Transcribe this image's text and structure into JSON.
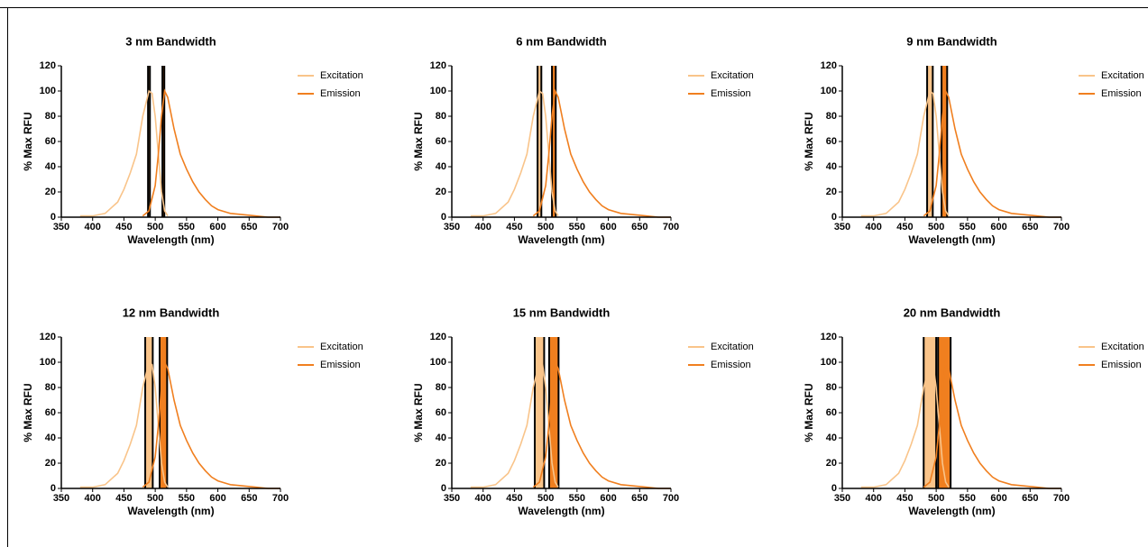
{
  "chart_data": [
    {
      "type": "line",
      "title": "3 nm Bandwidth",
      "x_label": "Wavelength (nm)",
      "y_label": "% Max RFU",
      "xlim": [
        350,
        700
      ],
      "ylim": [
        0,
        120
      ],
      "xticks": [
        350,
        400,
        450,
        500,
        550,
        600,
        650,
        700
      ],
      "yticks": [
        0,
        20,
        40,
        60,
        80,
        100,
        120
      ],
      "legend": "right",
      "bands": [
        {
          "color": "#f9c48a",
          "x": [
            488.5,
            491.5
          ]
        },
        {
          "color": "#f07f1f",
          "x": [
            511.5,
            514.5
          ]
        }
      ],
      "series": [
        {
          "name": "Excitation",
          "color": "#f9c48a",
          "x": [
            380,
            400,
            420,
            440,
            450,
            460,
            470,
            480,
            490,
            495,
            500,
            505,
            510,
            515,
            520
          ],
          "values": [
            1,
            1,
            3,
            12,
            22,
            35,
            50,
            80,
            100,
            98,
            80,
            50,
            20,
            5,
            1
          ]
        },
        {
          "name": "Emission",
          "color": "#f07f1f",
          "x": [
            480,
            490,
            500,
            505,
            510,
            515,
            520,
            530,
            540,
            550,
            560,
            570,
            580,
            590,
            600,
            620,
            640,
            660,
            680,
            700
          ],
          "values": [
            1,
            5,
            25,
            50,
            80,
            100,
            95,
            70,
            50,
            38,
            28,
            20,
            14,
            9,
            6,
            3,
            2,
            1,
            0,
            0
          ]
        }
      ]
    },
    {
      "type": "line",
      "title": "6 nm Bandwidth",
      "x_label": "Wavelength (nm)",
      "y_label": "% Max RFU",
      "xlim": [
        350,
        700
      ],
      "ylim": [
        0,
        120
      ],
      "xticks": [
        350,
        400,
        450,
        500,
        550,
        600,
        650,
        700
      ],
      "yticks": [
        0,
        20,
        40,
        60,
        80,
        100,
        120
      ],
      "legend": "right",
      "bands": [
        {
          "color": "#f9c48a",
          "x": [
            487,
            493
          ]
        },
        {
          "color": "#f07f1f",
          "x": [
            510,
            516
          ]
        }
      ],
      "series": [
        {
          "name": "Excitation",
          "color": "#f9c48a",
          "x": [
            380,
            400,
            420,
            440,
            450,
            460,
            470,
            480,
            490,
            495,
            500,
            505,
            510,
            515,
            520
          ],
          "values": [
            1,
            1,
            3,
            12,
            22,
            35,
            50,
            80,
            100,
            98,
            80,
            50,
            20,
            5,
            1
          ]
        },
        {
          "name": "Emission",
          "color": "#f07f1f",
          "x": [
            480,
            490,
            500,
            505,
            510,
            515,
            520,
            530,
            540,
            550,
            560,
            570,
            580,
            590,
            600,
            620,
            640,
            660,
            680,
            700
          ],
          "values": [
            1,
            5,
            25,
            50,
            80,
            100,
            95,
            70,
            50,
            38,
            28,
            20,
            14,
            9,
            6,
            3,
            2,
            1,
            0,
            0
          ]
        }
      ]
    },
    {
      "type": "line",
      "title": "9 nm Bandwidth",
      "x_label": "Wavelength (nm)",
      "y_label": "% Max RFU",
      "xlim": [
        350,
        700
      ],
      "ylim": [
        0,
        120
      ],
      "xticks": [
        350,
        400,
        450,
        500,
        550,
        600,
        650,
        700
      ],
      "yticks": [
        0,
        20,
        40,
        60,
        80,
        100,
        120
      ],
      "legend": "right",
      "bands": [
        {
          "color": "#f9c48a",
          "x": [
            485.5,
            494.5
          ]
        },
        {
          "color": "#f07f1f",
          "x": [
            508.5,
            517.5
          ]
        }
      ],
      "series": [
        {
          "name": "Excitation",
          "color": "#f9c48a",
          "x": [
            380,
            400,
            420,
            440,
            450,
            460,
            470,
            480,
            490,
            495,
            500,
            505,
            510,
            515,
            520
          ],
          "values": [
            1,
            1,
            3,
            12,
            22,
            35,
            50,
            80,
            100,
            98,
            80,
            50,
            20,
            5,
            1
          ]
        },
        {
          "name": "Emission",
          "color": "#f07f1f",
          "x": [
            480,
            490,
            500,
            505,
            510,
            515,
            520,
            530,
            540,
            550,
            560,
            570,
            580,
            590,
            600,
            620,
            640,
            660,
            680,
            700
          ],
          "values": [
            1,
            5,
            25,
            50,
            80,
            100,
            95,
            70,
            50,
            38,
            28,
            20,
            14,
            9,
            6,
            3,
            2,
            1,
            0,
            0
          ]
        }
      ]
    },
    {
      "type": "line",
      "title": "12 nm Bandwidth",
      "x_label": "Wavelength (nm)",
      "y_label": "% Max RFU",
      "xlim": [
        350,
        700
      ],
      "ylim": [
        0,
        120
      ],
      "xticks": [
        350,
        400,
        450,
        500,
        550,
        600,
        650,
        700
      ],
      "yticks": [
        0,
        20,
        40,
        60,
        80,
        100,
        120
      ],
      "legend": "right",
      "bands": [
        {
          "color": "#f9c48a",
          "x": [
            484,
            496
          ]
        },
        {
          "color": "#f07f1f",
          "x": [
            507,
            519
          ]
        }
      ],
      "series": [
        {
          "name": "Excitation",
          "color": "#f9c48a",
          "x": [
            380,
            400,
            420,
            440,
            450,
            460,
            470,
            480,
            490,
            495,
            500,
            505,
            510,
            515,
            520
          ],
          "values": [
            1,
            1,
            3,
            12,
            22,
            35,
            50,
            80,
            100,
            98,
            80,
            50,
            20,
            5,
            1
          ]
        },
        {
          "name": "Emission",
          "color": "#f07f1f",
          "x": [
            480,
            490,
            500,
            505,
            510,
            515,
            520,
            530,
            540,
            550,
            560,
            570,
            580,
            590,
            600,
            620,
            640,
            660,
            680,
            700
          ],
          "values": [
            1,
            5,
            25,
            50,
            80,
            100,
            95,
            70,
            50,
            38,
            28,
            20,
            14,
            9,
            6,
            3,
            2,
            1,
            0,
            0
          ]
        }
      ]
    },
    {
      "type": "line",
      "title": "15 nm Bandwidth",
      "x_label": "Wavelength (nm)",
      "y_label": "% Max RFU",
      "xlim": [
        350,
        700
      ],
      "ylim": [
        0,
        120
      ],
      "xticks": [
        350,
        400,
        450,
        500,
        550,
        600,
        650,
        700
      ],
      "yticks": [
        0,
        20,
        40,
        60,
        80,
        100,
        120
      ],
      "legend": "right",
      "bands": [
        {
          "color": "#f9c48a",
          "x": [
            482.5,
            497.5
          ]
        },
        {
          "color": "#f07f1f",
          "x": [
            505.5,
            520.5
          ]
        }
      ],
      "series": [
        {
          "name": "Excitation",
          "color": "#f9c48a",
          "x": [
            380,
            400,
            420,
            440,
            450,
            460,
            470,
            480,
            490,
            495,
            500,
            505,
            510,
            515,
            520
          ],
          "values": [
            1,
            1,
            3,
            12,
            22,
            35,
            50,
            80,
            100,
            98,
            80,
            50,
            20,
            5,
            1
          ]
        },
        {
          "name": "Emission",
          "color": "#f07f1f",
          "x": [
            480,
            490,
            500,
            505,
            510,
            515,
            520,
            530,
            540,
            550,
            560,
            570,
            580,
            590,
            600,
            620,
            640,
            660,
            680,
            700
          ],
          "values": [
            1,
            5,
            25,
            50,
            80,
            100,
            95,
            70,
            50,
            38,
            28,
            20,
            14,
            9,
            6,
            3,
            2,
            1,
            0,
            0
          ]
        }
      ]
    },
    {
      "type": "line",
      "title": "20 nm Bandwidth",
      "x_label": "Wavelength (nm)",
      "y_label": "% Max RFU",
      "xlim": [
        350,
        700
      ],
      "ylim": [
        0,
        120
      ],
      "xticks": [
        350,
        400,
        450,
        500,
        550,
        600,
        650,
        700
      ],
      "yticks": [
        0,
        20,
        40,
        60,
        80,
        100,
        120
      ],
      "legend": "right",
      "bands": [
        {
          "color": "#f9c48a",
          "x": [
            480,
            500
          ]
        },
        {
          "color": "#f07f1f",
          "x": [
            503,
            523
          ]
        }
      ],
      "series": [
        {
          "name": "Excitation",
          "color": "#f9c48a",
          "x": [
            380,
            400,
            420,
            440,
            450,
            460,
            470,
            480,
            490,
            495,
            500,
            505,
            510,
            515,
            520
          ],
          "values": [
            1,
            1,
            3,
            12,
            22,
            35,
            50,
            80,
            100,
            98,
            80,
            50,
            20,
            5,
            1
          ]
        },
        {
          "name": "Emission",
          "color": "#f07f1f",
          "x": [
            480,
            490,
            500,
            505,
            510,
            515,
            520,
            530,
            540,
            550,
            560,
            570,
            580,
            590,
            600,
            620,
            640,
            660,
            680,
            700
          ],
          "values": [
            1,
            5,
            25,
            50,
            80,
            100,
            95,
            70,
            50,
            38,
            28,
            20,
            14,
            9,
            6,
            3,
            2,
            1,
            0,
            0
          ]
        }
      ]
    }
  ]
}
